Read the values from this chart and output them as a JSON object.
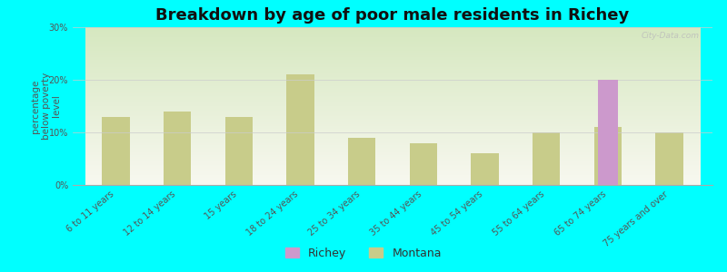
{
  "title": "Breakdown by age of poor male residents in Richey",
  "ylabel": "percentage\nbelow poverty\nlevel",
  "categories": [
    "6 to 11 years",
    "12 to 14 years",
    "15 years",
    "18 to 24 years",
    "25 to 34 years",
    "35 to 44 years",
    "45 to 54 years",
    "55 to 64 years",
    "65 to 74 years",
    "75 years and over"
  ],
  "richey_values": [
    0,
    0,
    0,
    0,
    0,
    0,
    0,
    0,
    20.0,
    0
  ],
  "montana_values": [
    13.0,
    14.0,
    13.0,
    21.0,
    9.0,
    8.0,
    6.0,
    10.0,
    11.0,
    10.0
  ],
  "richey_color": "#cc99cc",
  "montana_color": "#c8cc8a",
  "background_color": "#00ffff",
  "grad_top": "#d6e8c0",
  "grad_bottom": "#f5f5f0",
  "ylim": [
    0,
    30
  ],
  "yticks": [
    0,
    10,
    20,
    30
  ],
  "ytick_labels": [
    "0%",
    "10%",
    "20%",
    "30%"
  ],
  "title_fontsize": 13,
  "axis_label_fontsize": 7.5,
  "tick_fontsize": 7,
  "legend_fontsize": 9,
  "watermark": "City-Data.com"
}
